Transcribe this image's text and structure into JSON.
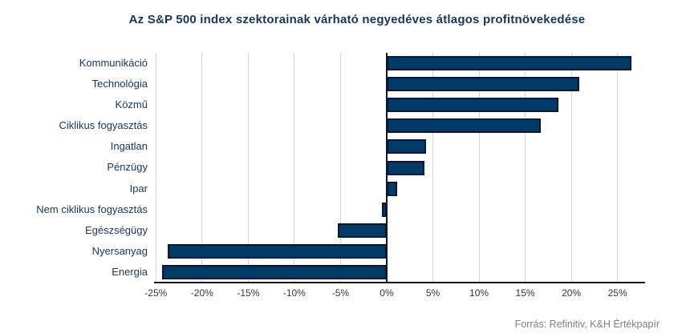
{
  "source": "Forrás: Refinitiv, K&H Értékpapír",
  "colors": {
    "bar_fill": "#003a66",
    "bar_border": "#0a1733",
    "gridline": "#d6d6d6",
    "axis_line": "#161616",
    "label_text": "#17365d",
    "source_text": "#7f7f7f"
  },
  "chart_data": {
    "type": "bar",
    "orientation": "horizontal",
    "title": "Az S&P 500 index szektorainak várható negyedéves átlagos profitnövekedése",
    "xlabel": "",
    "ylabel": "",
    "categories": [
      "Kommunikáció",
      "Technológia",
      "Közmű",
      "Ciklikus fogyasztás",
      "Ingatlan",
      "Pénzügy",
      "Ipar",
      "Nem ciklikus fogyasztás",
      "Egészségügy",
      "Nyersanyag",
      "Energia"
    ],
    "values": [
      26.5,
      20.9,
      18.6,
      16.7,
      4.3,
      4.1,
      1.1,
      -0.5,
      -5.3,
      -23.7,
      -24.3
    ],
    "unit": "%",
    "xlim": [
      -25.2,
      27.9
    ],
    "xtick_values": [
      -25,
      -20,
      -15,
      -10,
      -5,
      0,
      5,
      10,
      15,
      20,
      25
    ],
    "xtick_labels": [
      "-25%",
      "-20%",
      "-15%",
      "-10%",
      "-5%",
      "0%",
      "5%",
      "10%",
      "15%",
      "20%",
      "25%"
    ],
    "grid": true,
    "legend": false
  }
}
